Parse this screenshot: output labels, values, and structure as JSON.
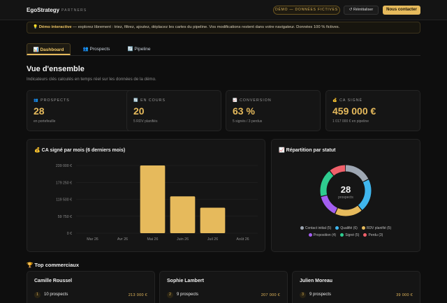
{
  "header": {
    "brand": "EgoStrategy",
    "brand_sub": "PARTNERS",
    "demo_badge": "DÉMO — DONNÉES FICTIVES",
    "reset_label": "↺ Réinitialiser",
    "contact_label": "Nous contacter"
  },
  "banner": {
    "icon": "💡",
    "strong": "Démo interactive",
    "text": " — explorez librement : triez, filtrez, ajoutez, déplacez les cartes du pipeline. Vos modifications restent dans votre navigateur. Données 100 % fictives."
  },
  "tabs": [
    {
      "label": "📊 Dashboard",
      "active": true
    },
    {
      "label": "👥 Prospects",
      "active": false
    },
    {
      "label": "🔄 Pipeline",
      "active": false
    }
  ],
  "overview": {
    "title": "Vue d'ensemble",
    "subtitle": "Indicateurs clés calculés en temps réel sur les données de la démo."
  },
  "kpis": [
    {
      "label": "👥 PROSPECTS",
      "value": "28",
      "foot": "en portefeuille"
    },
    {
      "label": "🔄 EN COURS",
      "value": "20",
      "foot": "5 RDV planifiés"
    },
    {
      "label": "📈 CONVERSION",
      "value": "63 %",
      "foot": "5 signés / 3 perdus"
    },
    {
      "label": "💰 CA SIGNÉ",
      "value": "459 000 €",
      "foot": "1 017 000 € en pipeline"
    }
  ],
  "chart_data": [
    {
      "type": "bar",
      "title": "💰 CA signé par mois (6 derniers mois)",
      "categories": [
        "Mar 26",
        "Avr 26",
        "Mai 26",
        "Juin 26",
        "Juil 26",
        "Août 26"
      ],
      "values": [
        0,
        0,
        239000,
        130000,
        90000,
        0
      ],
      "y_tick_labels": [
        "239 000 €",
        "179 250 €",
        "119 500 €",
        "59 750 €",
        "0 €"
      ],
      "ylim": [
        0,
        239000
      ],
      "grid": true,
      "colors": {
        "bar": "#e6ba5c"
      }
    },
    {
      "type": "pie",
      "title": "📈 Répartition par statut",
      "center_value": "28",
      "center_label": "prospects",
      "slices": [
        {
          "name": "Contact initial",
          "value": 5,
          "color": "#9ea7b3",
          "label": "Contact initial (5)"
        },
        {
          "name": "Qualifié",
          "value": 6,
          "color": "#3fb6ee",
          "label": "Qualifié (6)"
        },
        {
          "name": "RDV planifié",
          "value": 5,
          "color": "#e6ba5c",
          "label": "RDV planifié (5)"
        },
        {
          "name": "Proposition",
          "value": 4,
          "color": "#a35ef0",
          "label": "Proposition (4)"
        },
        {
          "name": "Signé",
          "value": 5,
          "color": "#2ecc8f",
          "label": "Signé (5)"
        },
        {
          "name": "Perdu",
          "value": 3,
          "color": "#f0606a",
          "label": "Perdu (3)"
        }
      ]
    }
  ],
  "top_sales": {
    "title": "🏆 Top commerciaux",
    "reps": [
      {
        "rank": "1",
        "name": "Camille Roussel",
        "prospects": "10 prospects",
        "amount": "213 000 €"
      },
      {
        "rank": "2",
        "name": "Sophie Lambert",
        "prospects": "9 prospects",
        "amount": "207 000 €"
      },
      {
        "rank": "3",
        "name": "Julien Moreau",
        "prospects": "9 prospects",
        "amount": "39 000 €"
      }
    ]
  }
}
